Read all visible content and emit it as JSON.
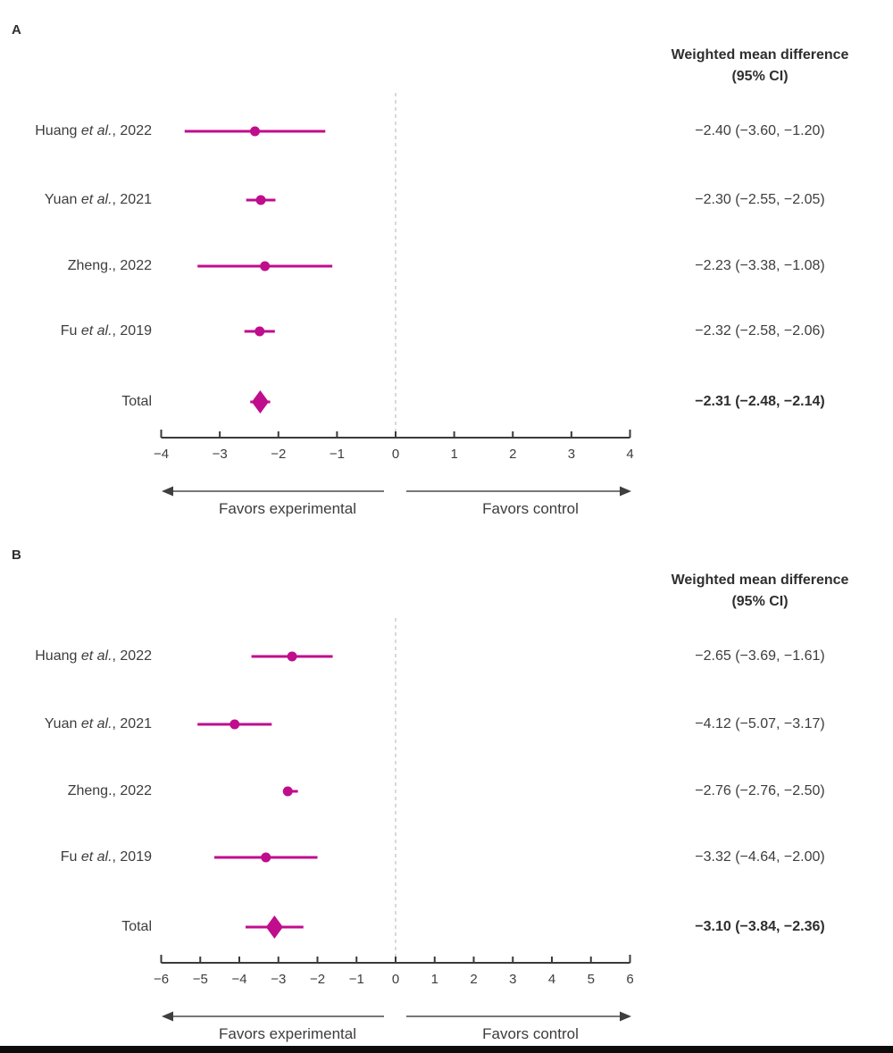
{
  "colors": {
    "accent": "#c00d8c",
    "text": "#3d3d3d",
    "axis": "#3a3a3a",
    "zero_line": "#c9c9c9",
    "arrow": "#4a4a4a",
    "bottom_rule": "#0c0c0c"
  },
  "chart_data": [
    {
      "type": "forest",
      "panel_label": "A",
      "column_header_line1": "Weighted mean difference",
      "column_header_line2": "(95% CI)",
      "xlim": [
        -4,
        4
      ],
      "xticks": [
        -4,
        -3,
        -2,
        -1,
        0,
        1,
        2,
        3,
        4
      ],
      "zero_reference": 0,
      "favors_left": "Favors experimental",
      "favors_right": "Favors control",
      "rows": [
        {
          "kind": "study",
          "label_pre": "Huang ",
          "label_italic": "et al.",
          "label_post": ", 2022",
          "estimate": -2.4,
          "ci_low": -3.6,
          "ci_high": -1.2,
          "ci_text": "−2.40 (−3.60, −1.20)"
        },
        {
          "kind": "study",
          "label_pre": "Yuan ",
          "label_italic": "et al.",
          "label_post": ", 2021",
          "estimate": -2.3,
          "ci_low": -2.55,
          "ci_high": -2.05,
          "ci_text": "−2.30 (−2.55, −2.05)"
        },
        {
          "kind": "study",
          "label_pre": "Zheng., 2022",
          "label_italic": "",
          "label_post": "",
          "estimate": -2.23,
          "ci_low": -3.38,
          "ci_high": -1.08,
          "ci_text": "−2.23 (−3.38, −1.08)"
        },
        {
          "kind": "study",
          "label_pre": "Fu ",
          "label_italic": "et al.",
          "label_post": ", 2019",
          "estimate": -2.32,
          "ci_low": -2.58,
          "ci_high": -2.06,
          "ci_text": "−2.32 (−2.58, −2.06)"
        },
        {
          "kind": "summary",
          "label_pre": "Total",
          "label_italic": "",
          "label_post": "",
          "estimate": -2.31,
          "ci_low": -2.48,
          "ci_high": -2.14,
          "ci_text": "−2.31 (−2.48, −2.14)"
        }
      ]
    },
    {
      "type": "forest",
      "panel_label": "B",
      "column_header_line1": "Weighted mean difference",
      "column_header_line2": "(95% CI)",
      "xlim": [
        -6,
        6
      ],
      "xticks": [
        -6,
        -5,
        -4,
        -3,
        -2,
        -1,
        0,
        1,
        2,
        3,
        4,
        5,
        6
      ],
      "zero_reference": 0,
      "favors_left": "Favors experimental",
      "favors_right": "Favors control",
      "rows": [
        {
          "kind": "study",
          "label_pre": "Huang ",
          "label_italic": "et al.",
          "label_post": ", 2022",
          "estimate": -2.65,
          "ci_low": -3.69,
          "ci_high": -1.61,
          "ci_text": "−2.65 (−3.69, −1.61)"
        },
        {
          "kind": "study",
          "label_pre": "Yuan ",
          "label_italic": "et al.",
          "label_post": ", 2021",
          "estimate": -4.12,
          "ci_low": -5.07,
          "ci_high": -3.17,
          "ci_text": "−4.12 (−5.07, −3.17)"
        },
        {
          "kind": "study",
          "label_pre": "Zheng., 2022",
          "label_italic": "",
          "label_post": "",
          "estimate": -2.76,
          "ci_low": -2.76,
          "ci_high": -2.5,
          "ci_text": "−2.76 (−2.76, −2.50)"
        },
        {
          "kind": "study",
          "label_pre": "Fu ",
          "label_italic": "et al.",
          "label_post": ", 2019",
          "estimate": -3.32,
          "ci_low": -4.64,
          "ci_high": -2.0,
          "ci_text": "−3.32 (−4.64, −2.00)"
        },
        {
          "kind": "summary",
          "label_pre": "Total",
          "label_italic": "",
          "label_post": "",
          "estimate": -3.1,
          "ci_low": -3.84,
          "ci_high": -2.36,
          "ci_text": "−3.10 (−3.84, −2.36)"
        }
      ]
    }
  ]
}
